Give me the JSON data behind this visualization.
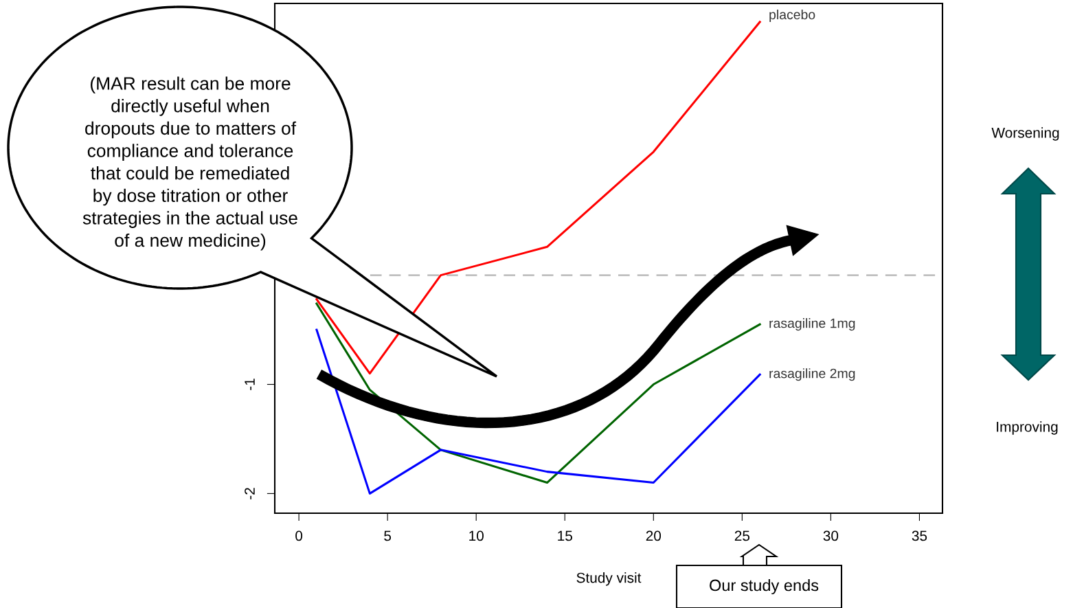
{
  "chart_data": {
    "type": "line",
    "xlabel": "Study visit",
    "x": [
      1,
      4,
      8,
      14,
      20,
      26
    ],
    "series": [
      {
        "name": "placebo",
        "color": "#ff0000",
        "values": [
          -0.22,
          -0.9,
          0.0,
          0.26,
          1.13,
          2.32
        ]
      },
      {
        "name": "rasagiline 1mg",
        "color": "#006400",
        "values": [
          -0.26,
          -1.05,
          -1.6,
          -1.9,
          -1.0,
          -0.45
        ]
      },
      {
        "name": "rasagiline 2mg",
        "color": "#0000ff",
        "values": [
          -0.5,
          -2.0,
          -1.6,
          -1.8,
          -1.9,
          -0.91
        ]
      }
    ],
    "xlim": [
      -1.36,
      36.3
    ],
    "ylim": [
      -2.18,
      2.49
    ],
    "xticks": [
      0,
      5,
      10,
      15,
      20,
      25,
      30,
      35
    ],
    "yticks": [
      -2,
      -1
    ],
    "ref_lines": [
      {
        "axis": "y",
        "value": 0,
        "color": "#c0c0c0",
        "line_style": "dashed"
      }
    ],
    "grid": false,
    "legend": false,
    "marker": "none",
    "line_style": "solid",
    "annotations": [
      "(MAR result can be more\ndirectly useful when\ndropouts due to matters of\ncompliance and tolerance\nthat could be remediated\nby dose titration or other\nstrategies in the actual use\nof a new medicine)",
      "Worsening",
      "Improving",
      "Our study ends"
    ]
  }
}
